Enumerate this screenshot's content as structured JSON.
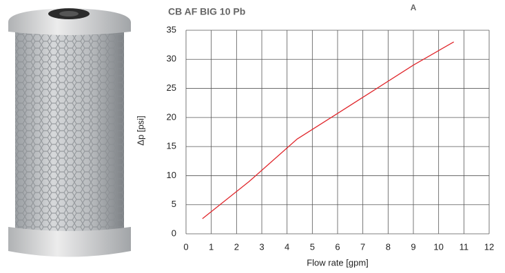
{
  "chart_data": {
    "type": "line",
    "title": "CB AF BIG 10 Pb",
    "annotation": "A",
    "x_label": "Flow rate [gpm]",
    "y_label": "Δp [psi]",
    "x": [
      0.65,
      2.5,
      4.4,
      6,
      9,
      10.6
    ],
    "series": [
      {
        "name": "CB AF BIG 10 Pb",
        "color": "#e0262b",
        "values": [
          2.6,
          9,
          16.3,
          20.7,
          29,
          33
        ]
      }
    ],
    "xlim": [
      0,
      12
    ],
    "xticks": [
      0,
      1,
      2,
      3,
      4,
      5,
      6,
      7,
      8,
      9,
      10,
      11,
      12
    ],
    "ylim": [
      0,
      35
    ],
    "yticks": [
      0,
      5,
      10,
      15,
      20,
      25,
      30,
      35
    ],
    "grid": true
  }
}
